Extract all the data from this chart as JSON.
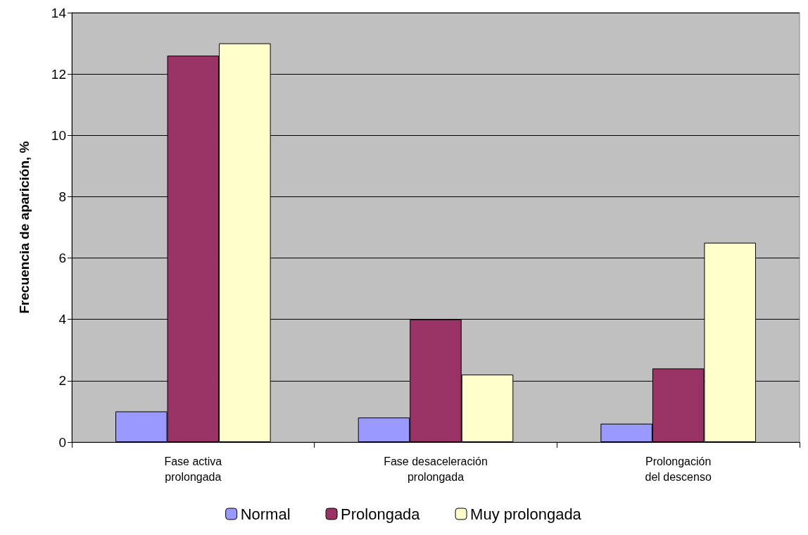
{
  "chart_data": {
    "type": "bar",
    "ylabel": "Frecuencia de aparición, %",
    "categories": [
      "Fase activa\nprolongada",
      "Fase desaceleración\nprolongada",
      "Prolongación\ndel descenso"
    ],
    "series": [
      {
        "name": "Normal",
        "color": "#9999ff",
        "values": [
          1.0,
          0.8,
          0.6
        ]
      },
      {
        "name": "Prolongada",
        "color": "#993366",
        "values": [
          12.6,
          4.0,
          2.4
        ]
      },
      {
        "name": "Muy prolongada",
        "color": "#ffffcc",
        "values": [
          13.0,
          2.2,
          6.5
        ]
      }
    ],
    "ylim": [
      0,
      14
    ],
    "yticks": [
      0,
      2,
      4,
      6,
      8,
      10,
      12,
      14
    ],
    "grid": "y",
    "legend": "bottom"
  }
}
